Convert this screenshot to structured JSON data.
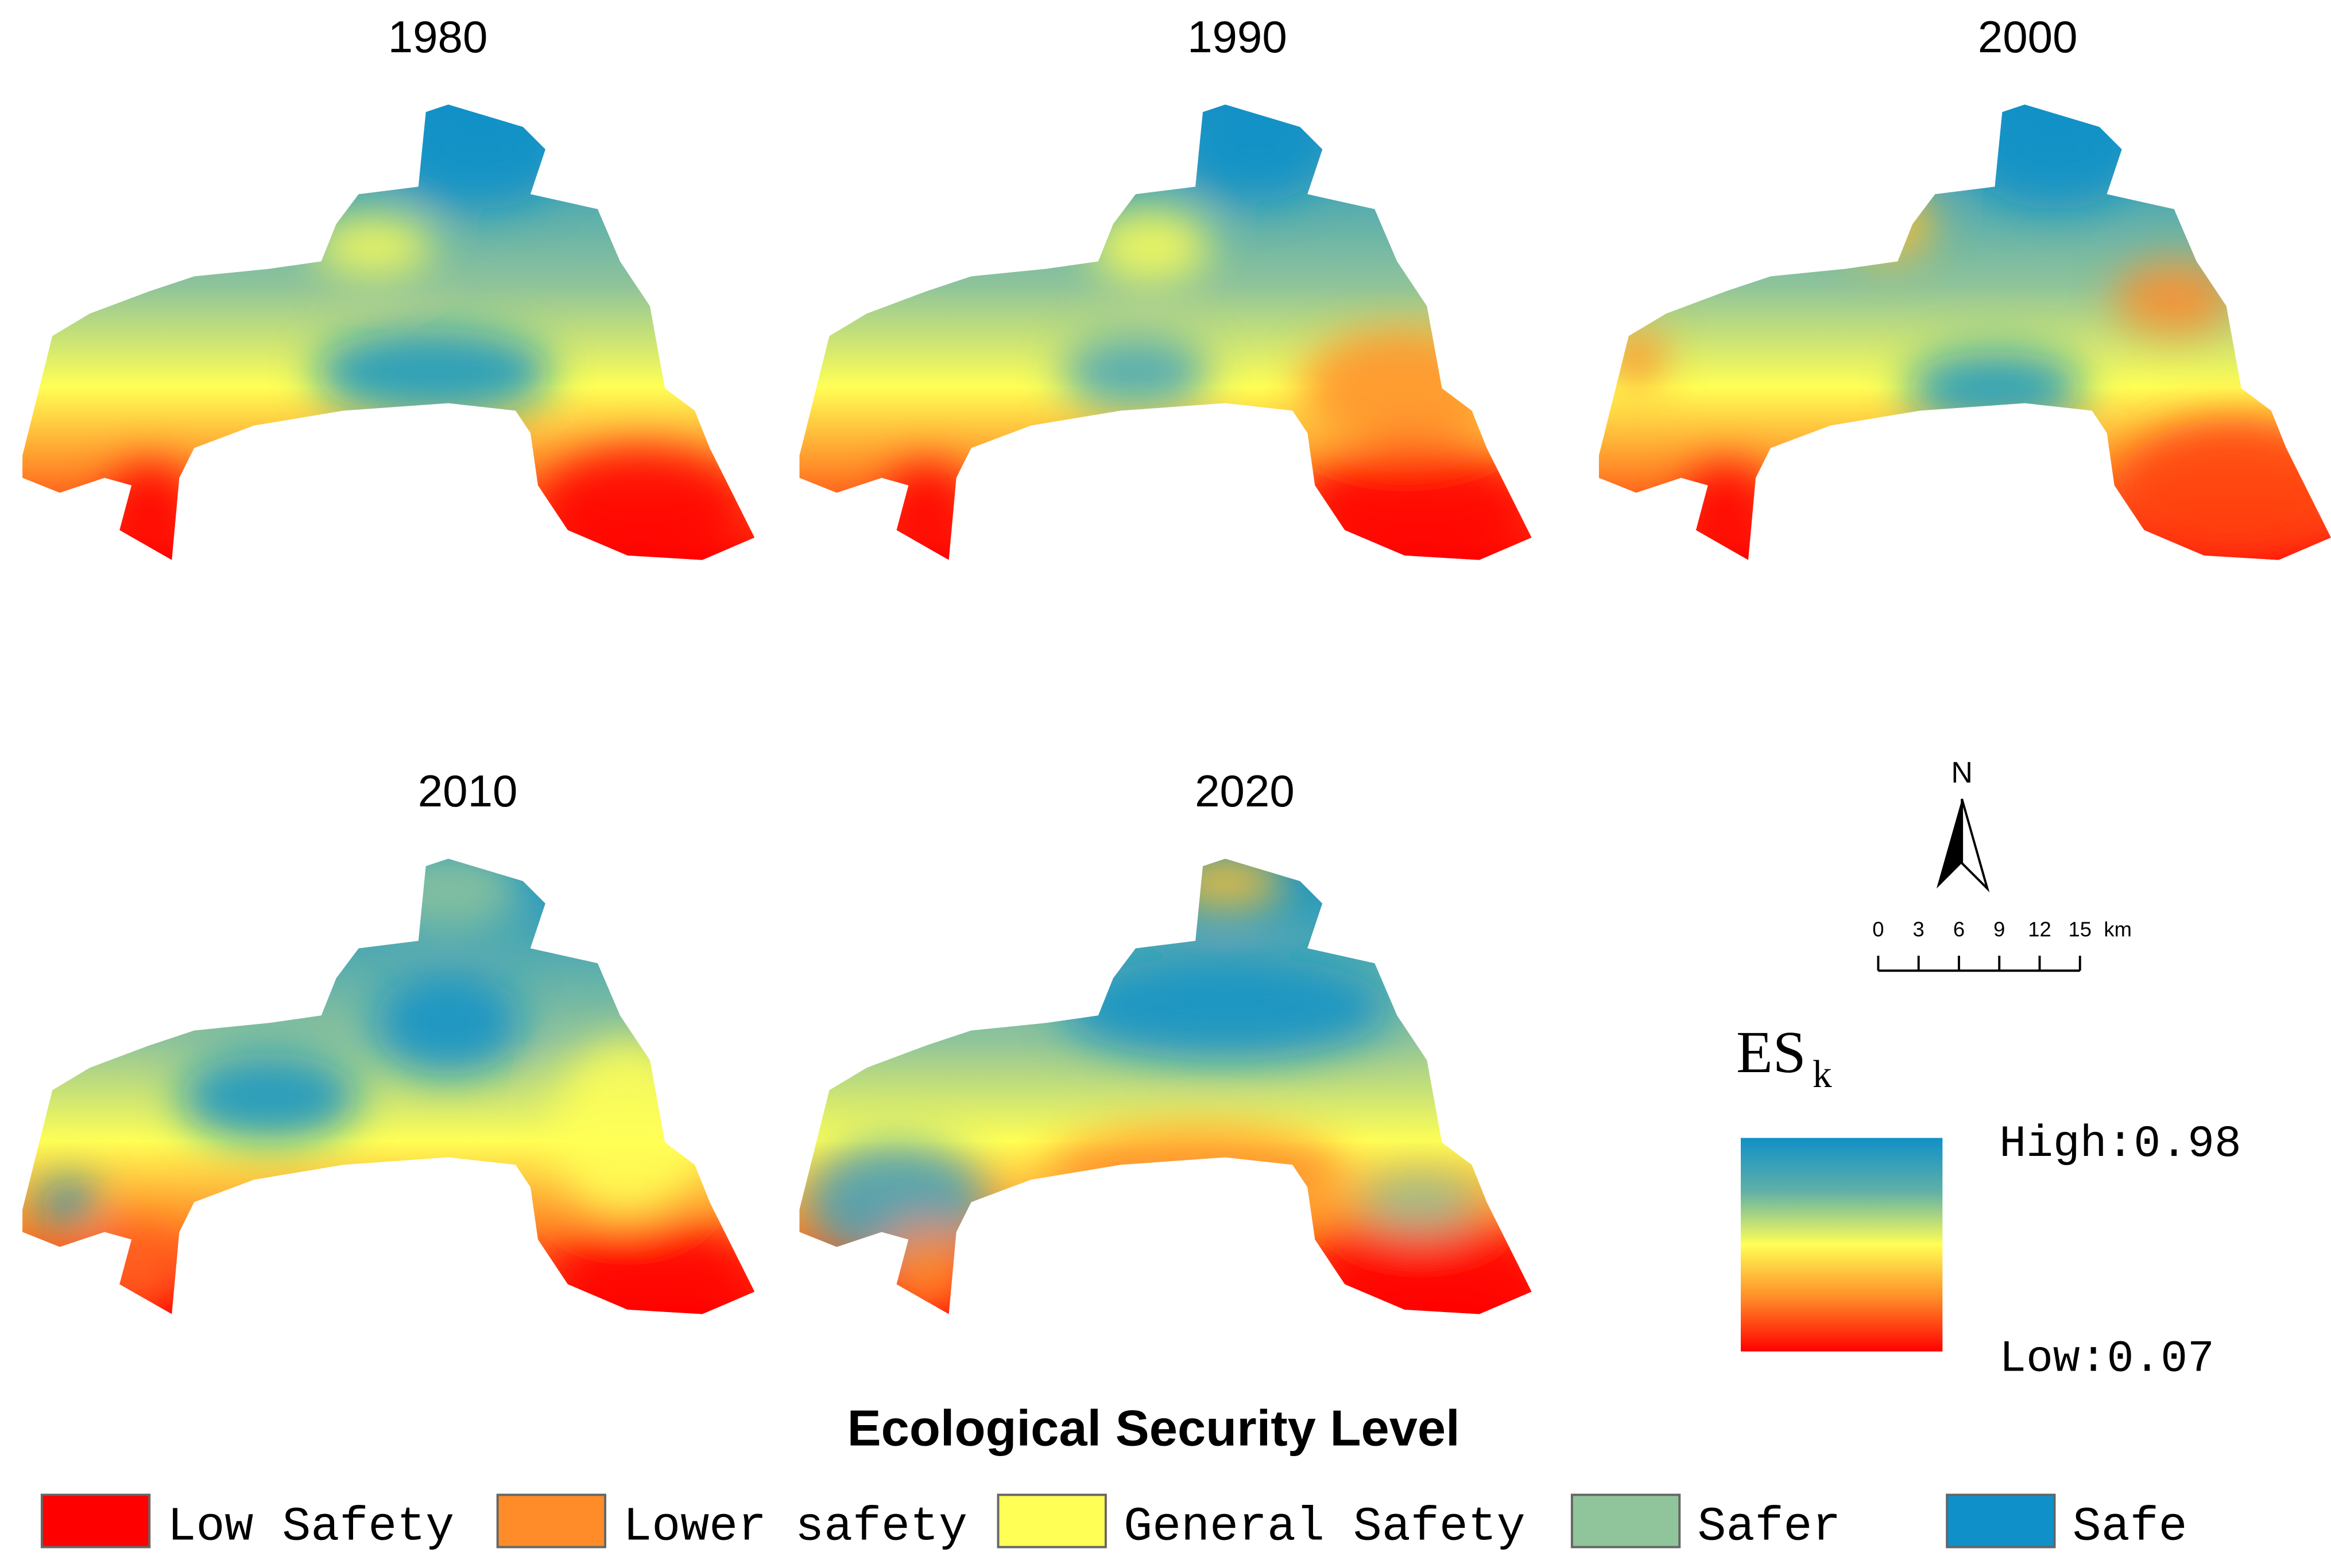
{
  "panels": [
    {
      "title": "1980"
    },
    {
      "title": "1990"
    },
    {
      "title": "2000"
    },
    {
      "title": "2010"
    },
    {
      "title": "2020"
    }
  ],
  "north": "N",
  "scale": {
    "ticks": [
      "0",
      "3",
      "6",
      "9",
      "12",
      "15"
    ],
    "unit": "km"
  },
  "colorbar": {
    "label": "ES",
    "subscript": "k",
    "high": "High:0.98",
    "low": "Low:0.07"
  },
  "legend": {
    "title": "Ecological Security Level",
    "items": [
      {
        "label": "Low Safety",
        "color": "#ff0000"
      },
      {
        "label": "Lower safety",
        "color": "#ff8c28"
      },
      {
        "label": "General Safety",
        "color": "#ffff55"
      },
      {
        "label": "Safer",
        "color": "#90c49a"
      },
      {
        "label": "Safe",
        "color": "#1090c8"
      }
    ]
  }
}
